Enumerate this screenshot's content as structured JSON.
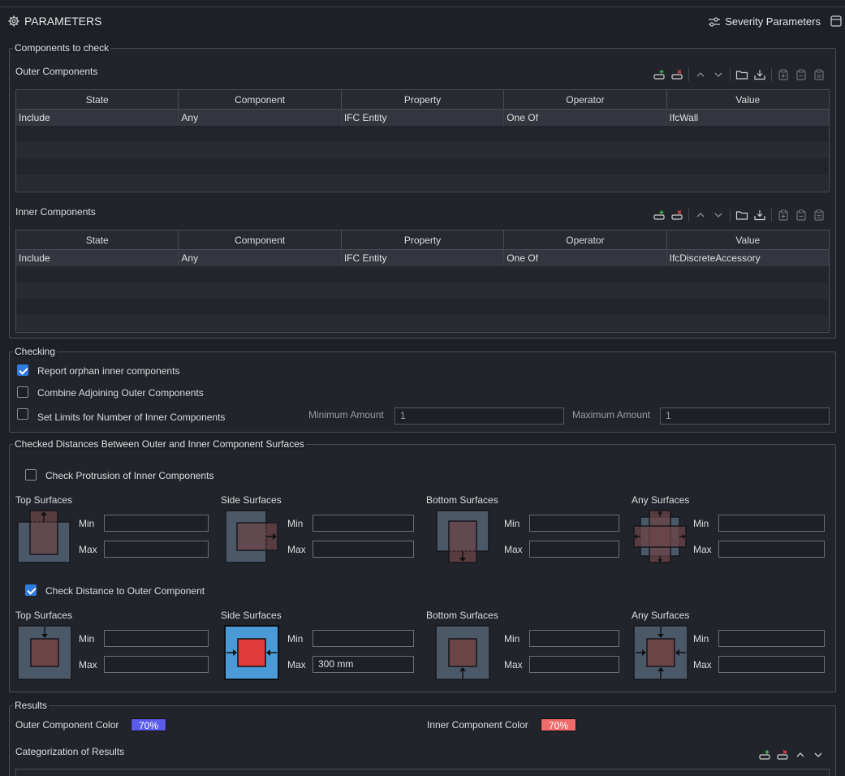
{
  "header": {
    "title": "PARAMETERS",
    "severity_label": "Severity Parameters",
    "settings_icon": "gear-icon",
    "severity_icon": "sliders-icon",
    "panel_icon": "panel-icon"
  },
  "components": {
    "legend": "Components to check",
    "outer": {
      "label": "Outer Components",
      "columns": [
        "State",
        "Component",
        "Property",
        "Operator",
        "Value"
      ],
      "rows": [
        [
          "Include",
          "Any",
          "IFC Entity",
          "One Of",
          "IfcWall"
        ]
      ]
    },
    "inner": {
      "label": "Inner Components",
      "columns": [
        "State",
        "Component",
        "Property",
        "Operator",
        "Value"
      ],
      "rows": [
        [
          "Include",
          "Any",
          "IFC Entity",
          "One Of",
          "IfcDiscreteAccessory"
        ]
      ]
    }
  },
  "checking": {
    "legend": "Checking",
    "report_orphan": {
      "label": "Report orphan inner components",
      "checked": true
    },
    "combine_adjoining": {
      "label": "Combine Adjoining Outer Components",
      "checked": false
    },
    "set_limits": {
      "label": "Set Limits for Number of Inner Components",
      "checked": false
    },
    "min_amount_label": "Minimum Amount",
    "min_amount_value": "1",
    "max_amount_label": "Maximum Amount",
    "max_amount_value": "1"
  },
  "distances": {
    "legend": "Checked Distances Between Outer and Inner Component Surfaces",
    "protrusion": {
      "label": "Check Protrusion of Inner Components",
      "checked": false,
      "groups": [
        {
          "title": "Top Surfaces",
          "min_label": "Min",
          "max_label": "Max",
          "min": "",
          "max": ""
        },
        {
          "title": "Side Surfaces",
          "min_label": "Min",
          "max_label": "Max",
          "min": "",
          "max": ""
        },
        {
          "title": "Bottom Surfaces",
          "min_label": "Min",
          "max_label": "Max",
          "min": "",
          "max": ""
        },
        {
          "title": "Any Surfaces",
          "min_label": "Min",
          "max_label": "Max",
          "min": "",
          "max": ""
        }
      ]
    },
    "distance": {
      "label": "Check Distance to Outer Component",
      "checked": true,
      "groups": [
        {
          "title": "Top Surfaces",
          "min_label": "Min",
          "max_label": "Max",
          "min": "",
          "max": ""
        },
        {
          "title": "Side Surfaces",
          "min_label": "Min",
          "max_label": "Max",
          "min": "",
          "max": "300 mm"
        },
        {
          "title": "Bottom Surfaces",
          "min_label": "Min",
          "max_label": "Max",
          "min": "",
          "max": ""
        },
        {
          "title": "Any Surfaces",
          "min_label": "Min",
          "max_label": "Max",
          "min": "",
          "max": ""
        }
      ]
    }
  },
  "results": {
    "legend": "Results",
    "outer_color_label": "Outer Component Color",
    "outer_color_value": "70%",
    "outer_color": "#5b5bea",
    "inner_color_label": "Inner Component Color",
    "inner_color_value": "70%",
    "inner_color": "#f06a6a",
    "categorization_label": "Categorization of Results"
  },
  "colors": {
    "accent": "#2f7be0",
    "outer_fill": "#4a5868",
    "inner_fill": "#6b4447",
    "highlight_outer": "#4a9ad8",
    "highlight_inner": "#e03a3a"
  }
}
